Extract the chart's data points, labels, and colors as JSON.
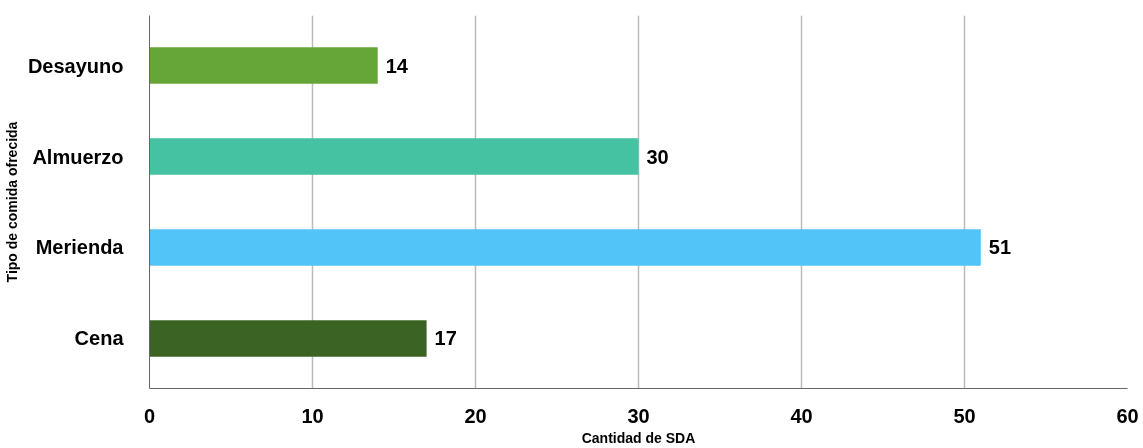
{
  "chart_data": {
    "type": "bar",
    "orientation": "horizontal",
    "xlabel": "Cantidad de SDA",
    "ylabel": "Tipo de comida ofrecida",
    "categories": [
      "Desayuno",
      "Almuerzo",
      "Merienda",
      "Cena"
    ],
    "values": [
      14,
      30,
      51,
      17
    ],
    "colors": [
      "#66a638",
      "#45c2a2",
      "#53c4f7",
      "#3b6424"
    ],
    "xlim": [
      0,
      60
    ],
    "xticks": [
      0,
      10,
      20,
      30,
      40,
      50,
      60
    ],
    "grid": "x",
    "data_labels": true
  }
}
